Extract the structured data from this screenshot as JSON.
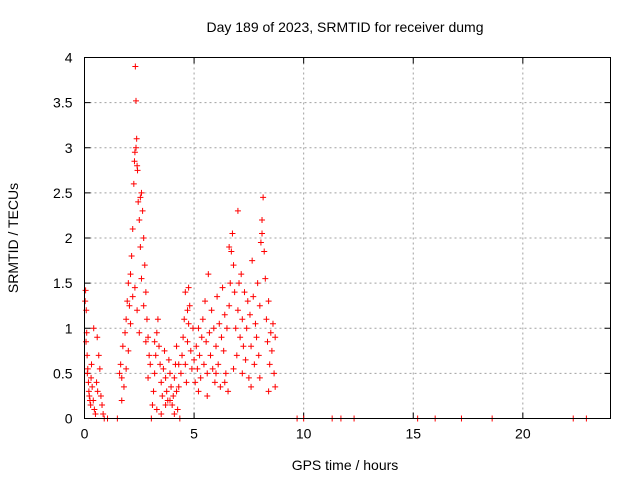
{
  "chart_data": {
    "type": "scatter",
    "title": "Day 189 of 2023, SRMTID for receiver dumg",
    "xlabel": "GPS time / hours",
    "ylabel": "SRMTID / TECUs",
    "xlim": [
      0,
      24
    ],
    "ylim": [
      0,
      4
    ],
    "x_ticks": [
      0,
      5,
      10,
      15,
      20
    ],
    "x_tick_labels": [
      "0",
      "5",
      "10",
      "15",
      "20"
    ],
    "y_ticks": [
      0,
      0.5,
      1,
      1.5,
      2,
      2.5,
      3,
      3.5,
      4
    ],
    "y_tick_labels": [
      "0",
      "0.5",
      "1",
      "1.5",
      "2",
      "2.5",
      "3",
      "3.5",
      "4"
    ],
    "grid": true,
    "marker": "+",
    "color": "#ff0000",
    "series": [
      {
        "name": "SRMTID",
        "points": [
          [
            0.05,
            1.42
          ],
          [
            0.08,
            1.2
          ],
          [
            0.1,
            0.95
          ],
          [
            0.12,
            0.7
          ],
          [
            0.15,
            0.55
          ],
          [
            0.18,
            0.4
          ],
          [
            0.2,
            0.3
          ],
          [
            0.22,
            0.25
          ],
          [
            0.25,
            0.2
          ],
          [
            0.28,
            0.15
          ],
          [
            0.3,
            0.45
          ],
          [
            0.32,
            0.6
          ],
          [
            0.35,
            0.35
          ],
          [
            0.4,
            0.2
          ],
          [
            0.45,
            0.1
          ],
          [
            0.5,
            0.05
          ],
          [
            0.55,
            0.4
          ],
          [
            0.6,
            0.3
          ],
          [
            0.65,
            0.7
          ],
          [
            0.7,
            0.55
          ],
          [
            0.75,
            0.25
          ],
          [
            0.8,
            0.15
          ],
          [
            0.85,
            0.05
          ],
          [
            0.03,
            1.3
          ],
          [
            0.07,
            0.85
          ],
          [
            0.13,
            0.5
          ],
          [
            0.42,
            1.0
          ],
          [
            0.58,
            0.9
          ],
          [
            1.05,
            0.0
          ],
          [
            1.5,
            0.0
          ],
          [
            3.05,
            0.0
          ],
          [
            9.7,
            0.0
          ],
          [
            10.0,
            0.0
          ],
          [
            11.3,
            0.0
          ],
          [
            11.7,
            0.0
          ],
          [
            12.3,
            0.0
          ],
          [
            15.2,
            0.0
          ],
          [
            16.0,
            0.0
          ],
          [
            17.2,
            0.0
          ],
          [
            18.6,
            0.0
          ],
          [
            22.3,
            0.0
          ],
          [
            22.9,
            0.0
          ],
          [
            4.35,
            0.0
          ],
          [
            0.9,
            0.0
          ],
          [
            1.6,
            0.5
          ],
          [
            1.65,
            0.6
          ],
          [
            1.7,
            0.45
          ],
          [
            1.75,
            0.8
          ],
          [
            1.8,
            0.35
          ],
          [
            1.85,
            0.95
          ],
          [
            1.9,
            1.1
          ],
          [
            1.95,
            1.3
          ],
          [
            2.0,
            1.5
          ],
          [
            2.05,
            1.25
          ],
          [
            2.1,
            1.6
          ],
          [
            2.15,
            1.8
          ],
          [
            2.2,
            2.1
          ],
          [
            2.25,
            2.6
          ],
          [
            2.3,
            2.95
          ],
          [
            2.32,
            3.9
          ],
          [
            2.35,
            3.52
          ],
          [
            2.38,
            3.1
          ],
          [
            2.4,
            2.8
          ],
          [
            2.45,
            2.4
          ],
          [
            2.5,
            2.2
          ],
          [
            2.55,
            1.9
          ],
          [
            2.6,
            2.5
          ],
          [
            2.65,
            2.3
          ],
          [
            2.7,
            2.0
          ],
          [
            2.75,
            1.7
          ],
          [
            2.8,
            1.4
          ],
          [
            2.85,
            1.1
          ],
          [
            2.9,
            0.9
          ],
          [
            2.95,
            0.7
          ],
          [
            3.0,
            0.6
          ],
          [
            1.7,
            0.2
          ],
          [
            1.9,
            0.55
          ],
          [
            2.0,
            0.75
          ],
          [
            2.1,
            1.05
          ],
          [
            2.2,
            1.35
          ],
          [
            2.3,
            1.45
          ],
          [
            2.4,
            1.2
          ],
          [
            2.5,
            0.95
          ],
          [
            2.6,
            1.55
          ],
          [
            2.7,
            1.25
          ],
          [
            2.8,
            0.85
          ],
          [
            2.9,
            0.45
          ],
          [
            2.35,
            3.0
          ],
          [
            2.42,
            2.75
          ],
          [
            2.28,
            2.85
          ],
          [
            2.55,
            2.45
          ],
          [
            3.1,
            0.15
          ],
          [
            3.15,
            0.3
          ],
          [
            3.2,
            0.5
          ],
          [
            3.25,
            0.7
          ],
          [
            3.3,
            0.95
          ],
          [
            3.35,
            1.1
          ],
          [
            3.4,
            0.8
          ],
          [
            3.45,
            0.6
          ],
          [
            3.5,
            0.4
          ],
          [
            3.55,
            0.25
          ],
          [
            3.6,
            0.55
          ],
          [
            3.65,
            0.75
          ],
          [
            3.7,
            0.45
          ],
          [
            3.75,
            0.3
          ],
          [
            3.8,
            0.2
          ],
          [
            3.85,
            0.65
          ],
          [
            3.9,
            0.5
          ],
          [
            3.95,
            0.35
          ],
          [
            4.0,
            0.15
          ],
          [
            4.05,
            0.25
          ],
          [
            4.1,
            0.45
          ],
          [
            4.15,
            0.6
          ],
          [
            4.2,
            0.3
          ],
          [
            4.25,
            0.1
          ],
          [
            4.3,
            0.35
          ],
          [
            4.4,
            0.5
          ],
          [
            4.45,
            0.7
          ],
          [
            4.5,
            0.9
          ],
          [
            4.55,
            1.1
          ],
          [
            4.6,
            0.6
          ],
          [
            4.65,
            0.4
          ],
          [
            4.7,
            0.85
          ],
          [
            4.75,
            1.05
          ],
          [
            4.8,
            1.25
          ],
          [
            4.85,
            0.75
          ],
          [
            4.9,
            0.55
          ],
          [
            4.95,
            1.0
          ],
          [
            5.0,
            0.65
          ],
          [
            3.3,
            0.1
          ],
          [
            3.5,
            0.05
          ],
          [
            3.9,
            0.2
          ],
          [
            4.1,
            0.05
          ],
          [
            4.3,
            0.6
          ],
          [
            4.6,
            1.4
          ],
          [
            4.7,
            1.2
          ],
          [
            4.75,
            1.45
          ],
          [
            3.2,
            0.85
          ],
          [
            3.7,
            0.15
          ],
          [
            4.2,
            0.8
          ],
          [
            5.05,
            0.4
          ],
          [
            5.1,
            0.8
          ],
          [
            5.15,
            0.55
          ],
          [
            5.2,
            1.0
          ],
          [
            5.25,
            0.7
          ],
          [
            5.3,
            0.45
          ],
          [
            5.35,
            0.9
          ],
          [
            5.4,
            1.1
          ],
          [
            5.45,
            0.6
          ],
          [
            5.5,
            1.3
          ],
          [
            5.55,
            0.85
          ],
          [
            5.6,
            0.5
          ],
          [
            5.65,
            1.6
          ],
          [
            5.7,
            0.95
          ],
          [
            5.75,
            0.7
          ],
          [
            5.8,
            1.2
          ],
          [
            5.85,
            0.55
          ],
          [
            5.9,
            1.0
          ],
          [
            5.95,
            0.4
          ],
          [
            6.0,
            0.8
          ],
          [
            6.05,
            1.35
          ],
          [
            6.1,
            0.6
          ],
          [
            6.15,
            1.05
          ],
          [
            6.2,
            0.35
          ],
          [
            6.25,
            0.9
          ],
          [
            6.3,
            1.45
          ],
          [
            6.35,
            0.75
          ],
          [
            6.4,
            1.15
          ],
          [
            6.45,
            0.5
          ],
          [
            6.5,
            1.0
          ],
          [
            6.55,
            0.3
          ],
          [
            6.6,
            1.25
          ],
          [
            6.65,
            1.5
          ],
          [
            6.7,
            1.85
          ],
          [
            6.75,
            2.05
          ],
          [
            6.8,
            1.7
          ],
          [
            6.85,
            1.4
          ],
          [
            6.9,
            1.0
          ],
          [
            6.95,
            0.7
          ],
          [
            7.0,
            1.2
          ],
          [
            7.05,
            1.5
          ],
          [
            7.1,
            0.9
          ],
          [
            7.15,
            1.6
          ],
          [
            7.2,
            1.1
          ],
          [
            7.25,
            0.8
          ],
          [
            7.3,
            1.4
          ],
          [
            7.35,
            0.65
          ],
          [
            7.4,
            1.0
          ],
          [
            7.45,
            1.3
          ],
          [
            7.5,
            0.45
          ],
          [
            7.55,
            1.15
          ],
          [
            7.6,
            0.8
          ],
          [
            7.65,
            1.75
          ],
          [
            7.7,
            1.35
          ],
          [
            7.75,
            0.6
          ],
          [
            7.8,
            1.05
          ],
          [
            7.85,
            0.9
          ],
          [
            7.9,
            1.5
          ],
          [
            7.95,
            0.7
          ],
          [
            8.0,
            1.25
          ],
          [
            8.05,
            1.95
          ],
          [
            8.1,
            2.2
          ],
          [
            8.15,
            2.45
          ],
          [
            8.2,
            1.85
          ],
          [
            8.25,
            1.55
          ],
          [
            8.3,
            1.1
          ],
          [
            8.35,
            0.85
          ],
          [
            8.4,
            1.3
          ],
          [
            8.45,
            0.6
          ],
          [
            8.5,
            0.95
          ],
          [
            8.55,
            0.75
          ],
          [
            8.6,
            1.05
          ],
          [
            8.65,
            0.5
          ],
          [
            8.7,
            0.9
          ],
          [
            5.2,
            0.3
          ],
          [
            5.6,
            0.25
          ],
          [
            6.0,
            0.5
          ],
          [
            6.4,
            0.4
          ],
          [
            6.8,
            0.55
          ],
          [
            7.2,
            0.5
          ],
          [
            7.6,
            0.35
          ],
          [
            8.0,
            0.45
          ],
          [
            8.4,
            0.3
          ],
          [
            8.7,
            0.35
          ],
          [
            7.0,
            2.3
          ],
          [
            6.6,
            1.9
          ],
          [
            8.1,
            2.05
          ]
        ]
      }
    ]
  }
}
